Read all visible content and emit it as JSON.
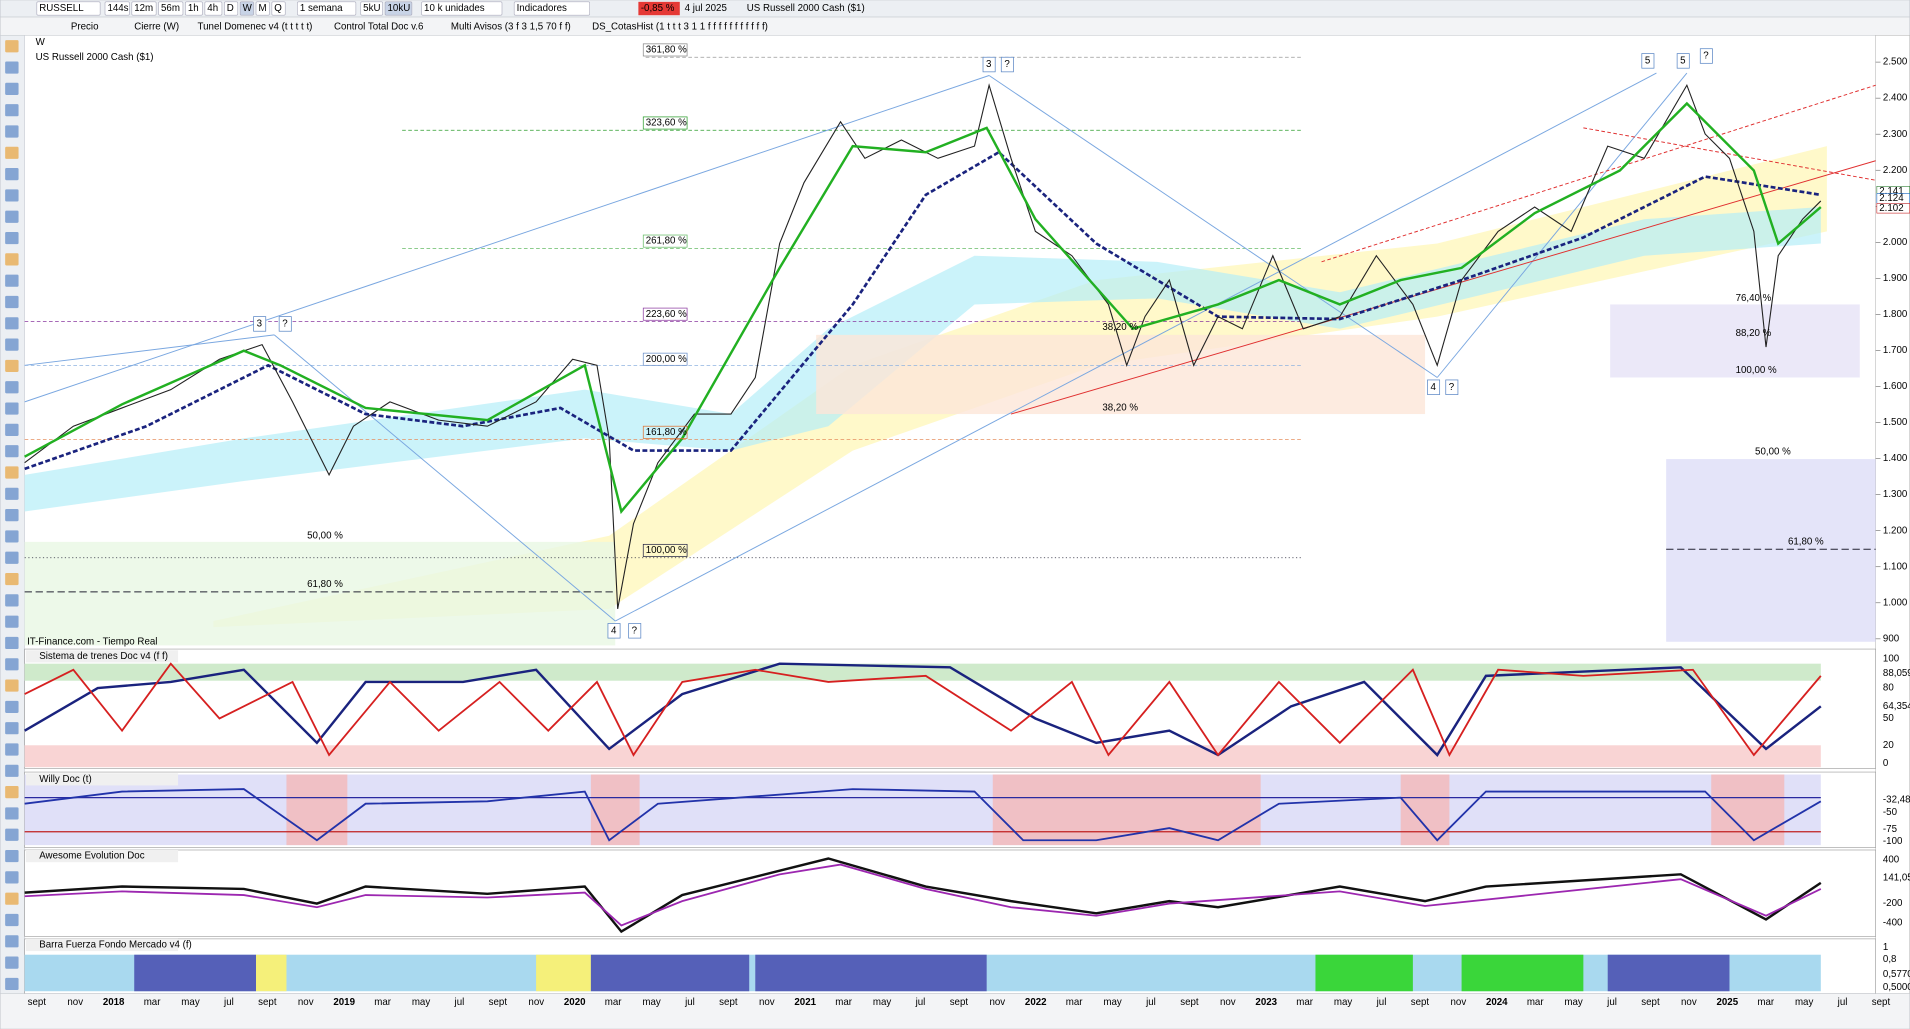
{
  "toolbar": {
    "symbol": "RUSSELL",
    "periods": [
      "144s",
      "12m",
      "56m",
      "1h",
      "4h",
      "D",
      "W",
      "M",
      "Q"
    ],
    "interval": "1 semana",
    "units": [
      "5kU",
      "10kU"
    ],
    "units_select": "10 k unidades",
    "indicators": "Indicadores",
    "change": "-0,85 %",
    "date": "4 jul 2025",
    "instrument": "US Russell 2000 Cash ($1)"
  },
  "studies": [
    "Precio",
    "Cierre (W)",
    "Tunel Domenec v4 (t t t t t)",
    "Control Total Doc v.6",
    "Multi Avisos (3 f 3 1,5 70 f f)",
    "DS_CotasHist (1 t t t 3 1 1 f f f f f f f f f f f)"
  ],
  "chart": {
    "timeframe": "W",
    "title": "US Russell 2000 Cash ($1)",
    "source": "IT-Finance.com - Tiempo Real",
    "price_axis": [
      "2.500",
      "2.400",
      "2.300",
      "2.200",
      "2.100",
      "2.000",
      "1.900",
      "1.800",
      "1.700",
      "1.600",
      "1.500",
      "1.400",
      "1.300",
      "1.200",
      "1.100",
      "1.000",
      "900"
    ],
    "price_tags": [
      "2.141",
      "2.124",
      "2.102"
    ],
    "fib_labels": [
      "361,80 %",
      "323,60 %",
      "261,80 %",
      "223,60 %",
      "200,00 %",
      "161,80 %",
      "100,00 %",
      "50,00 %",
      "61,80 %",
      "38,20 %",
      "76,40 %",
      "88,20 %",
      "100,00 %",
      "50,00 %",
      "61,80 %",
      "38,20 %"
    ],
    "wave_labels": [
      "3",
      "?",
      "3",
      "?",
      "4",
      "?",
      "4",
      "?",
      "5",
      "5",
      "?"
    ]
  },
  "panels": [
    {
      "title": "Sistema de trenes Doc v4 (f f)",
      "axis": [
        "100",
        "88,059",
        "80",
        "64,354",
        "50",
        "20",
        "0"
      ]
    },
    {
      "title": "Willy Doc (t)",
      "axis": [
        "-32,48",
        "-50",
        "-75",
        "-100"
      ]
    },
    {
      "title": "Awesome Evolution Doc",
      "axis": [
        "400",
        "141,05",
        "-200",
        "-400"
      ]
    },
    {
      "title": "Barra Fuerza Fondo Mercado v4 (f)",
      "axis": [
        "1",
        "0,8",
        "0,5770",
        "0,5000"
      ]
    }
  ],
  "time_axis": [
    "sept",
    "nov",
    "2018",
    "mar",
    "may",
    "jul",
    "sept",
    "nov",
    "2019",
    "mar",
    "may",
    "jul",
    "sept",
    "nov",
    "2020",
    "mar",
    "may",
    "jul",
    "sept",
    "nov",
    "2021",
    "mar",
    "may",
    "jul",
    "sept",
    "nov",
    "2022",
    "mar",
    "may",
    "jul",
    "sept",
    "nov",
    "2023",
    "mar",
    "may",
    "jul",
    "sept",
    "nov",
    "2024",
    "mar",
    "may",
    "jul",
    "sept",
    "nov",
    "2025",
    "mar",
    "may",
    "jul",
    "sept"
  ]
}
